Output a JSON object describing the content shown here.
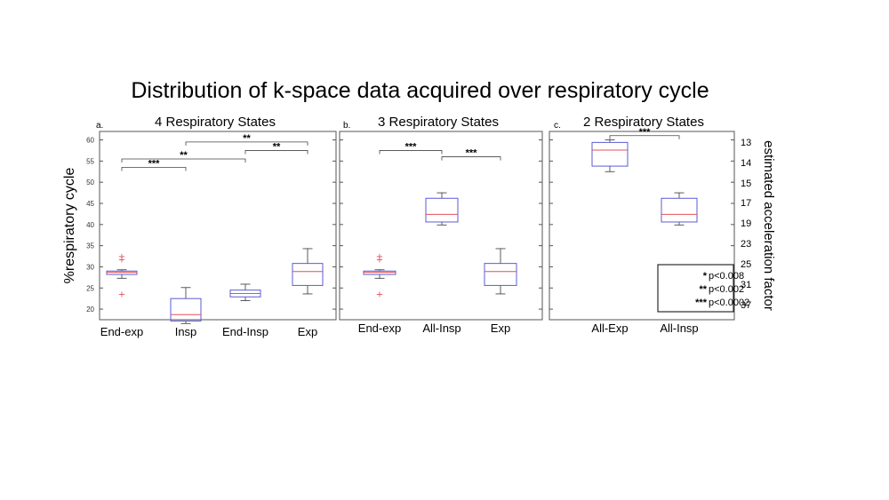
{
  "title": "Distribution of k-space data acquired over respiratory cycle",
  "left_axis_label": "%respiratory cycle",
  "right_axis_label": "estimated acceleration factor",
  "right_axis_ticks": [
    "13",
    "14",
    "15",
    "17",
    "19",
    "23",
    "25",
    "31",
    "37"
  ],
  "colors": {
    "box": "#5b5bd6",
    "median": "#e0505a",
    "outlier": "#e0505a",
    "whisker": "#333333",
    "frame": "#555555"
  },
  "legend": [
    {
      "stars": "*",
      "text": "p<0.008"
    },
    {
      "stars": "**",
      "text": "p<0.002"
    },
    {
      "stars": "***",
      "text": "p<0.0002"
    }
  ],
  "chart_data": [
    {
      "type": "box",
      "panel_letter": "a.",
      "title": "4 Respiratory States",
      "ylabel": "%respiratory cycle",
      "ylim": [
        17.5,
        62
      ],
      "yticks": [
        20,
        25,
        30,
        35,
        40,
        45,
        50,
        55,
        60
      ],
      "categories": [
        "End-exp",
        "Insp",
        "End-Insp",
        "Exp"
      ],
      "boxes": [
        {
          "category": "End-exp",
          "min": 27.3,
          "q1": 28.2,
          "median": 28.7,
          "q3": 29.0,
          "max": 29.3,
          "outliers": [
            23.6,
            31.8,
            32.5
          ]
        },
        {
          "category": "Insp",
          "min": 16.6,
          "q1": 17.2,
          "median": 18.7,
          "q3": 22.5,
          "max": 25.1,
          "outliers": []
        },
        {
          "category": "End-Insp",
          "min": 22.0,
          "q1": 22.9,
          "median": 23.7,
          "q3": 24.5,
          "max": 25.9,
          "outliers": []
        },
        {
          "category": "Exp",
          "min": 23.6,
          "q1": 25.6,
          "median": 28.9,
          "q3": 30.8,
          "max": 34.3,
          "outliers": []
        }
      ],
      "significance": [
        {
          "from": "End-exp",
          "to": "Insp",
          "stars": "***",
          "y": 53.5
        },
        {
          "from": "End-exp",
          "to": "End-Insp",
          "stars": "**",
          "y": 55.5
        },
        {
          "from": "End-Insp",
          "to": "Exp",
          "stars": "**",
          "y": 57.5
        },
        {
          "from": "Insp",
          "to": "Exp",
          "stars": "**",
          "y": 59.5
        }
      ]
    },
    {
      "type": "box",
      "panel_letter": "b.",
      "title": "3 Respiratory States",
      "ylim": [
        17.5,
        62
      ],
      "categories": [
        "End-exp",
        "All-Insp",
        "Exp"
      ],
      "boxes": [
        {
          "category": "End-exp",
          "min": 27.3,
          "q1": 28.2,
          "median": 28.7,
          "q3": 29.0,
          "max": 29.3,
          "outliers": [
            23.6,
            31.8,
            32.5
          ]
        },
        {
          "category": "All-Insp",
          "min": 39.9,
          "q1": 40.6,
          "median": 42.4,
          "q3": 46.2,
          "max": 47.5,
          "outliers": []
        },
        {
          "category": "Exp",
          "min": 23.6,
          "q1": 25.6,
          "median": 28.9,
          "q3": 30.8,
          "max": 34.3,
          "outliers": []
        }
      ],
      "significance": [
        {
          "from": "End-exp",
          "to": "All-Insp",
          "stars": "***",
          "y": 57.5
        },
        {
          "from": "All-Insp",
          "to": "Exp",
          "stars": "***",
          "y": 56.0
        }
      ]
    },
    {
      "type": "box",
      "panel_letter": "c.",
      "title": "2 Respiratory States",
      "ylim": [
        17.5,
        62
      ],
      "categories": [
        "All-Exp",
        "All-Insp"
      ],
      "boxes": [
        {
          "category": "All-Exp",
          "min": 52.5,
          "q1": 53.8,
          "median": 57.6,
          "q3": 59.4,
          "max": 60.0,
          "outliers": []
        },
        {
          "category": "All-Insp",
          "min": 39.9,
          "q1": 40.6,
          "median": 42.4,
          "q3": 46.2,
          "max": 47.5,
          "outliers": []
        }
      ],
      "significance": [
        {
          "from": "All-Exp",
          "to": "All-Insp",
          "stars": "***",
          "y": 61.0
        }
      ]
    }
  ]
}
